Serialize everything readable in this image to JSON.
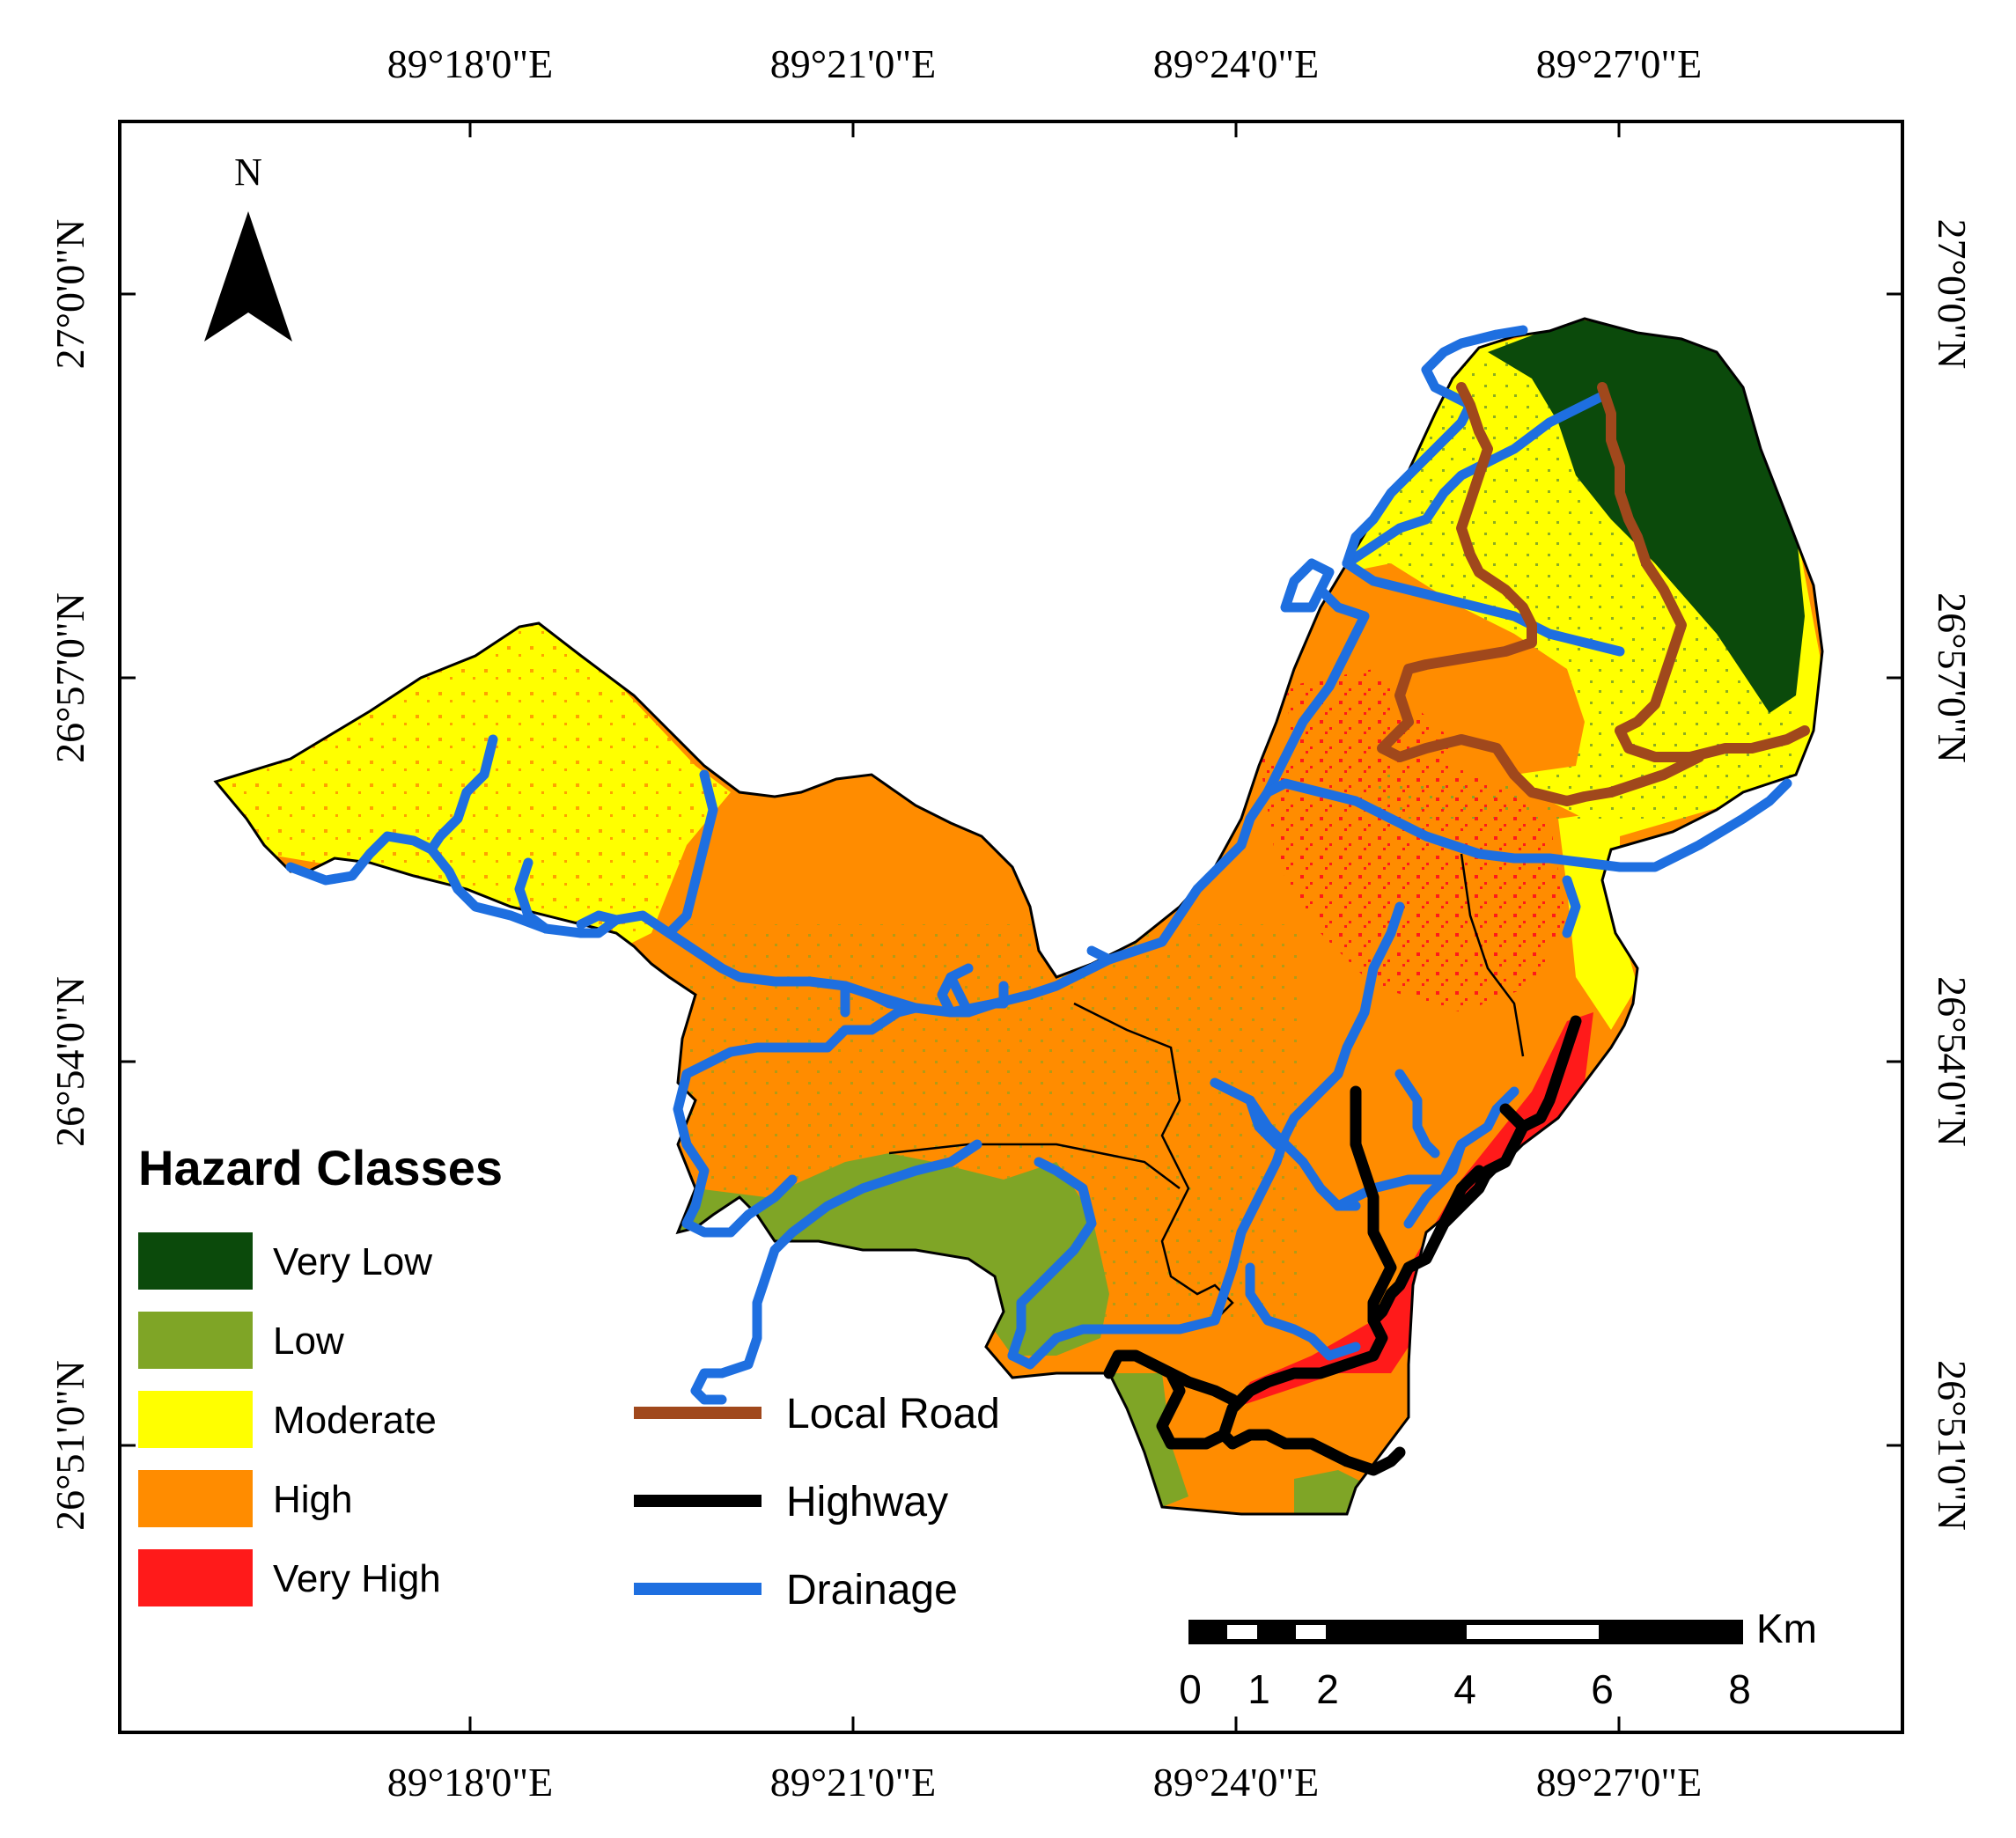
{
  "map": {
    "north_label": "N",
    "top_longitudes": [
      "89°18'0\"E",
      "89°21'0\"E",
      "89°24'0\"E",
      "89°27'0\"E"
    ],
    "bottom_longitudes": [
      "89°18'0\"E",
      "89°21'0\"E",
      "89°24'0\"E",
      "89°27'0\"E"
    ],
    "left_latitudes": [
      "27°0'0\"N",
      "26°57'0\"N",
      "26°54'0\"N",
      "26°51'0\"N"
    ],
    "right_latitudes": [
      "27°0'0\"N",
      "26°57'0\"N",
      "26°54'0\"N",
      "26°51'0\"N"
    ]
  },
  "legend": {
    "title": "Hazard Classes",
    "classes": [
      {
        "label": "Very Low",
        "color": "#0b4a0b"
      },
      {
        "label": "Low",
        "color": "#7fa526"
      },
      {
        "label": "Moderate",
        "color": "#ffff00"
      },
      {
        "label": "High",
        "color": "#ff8c00"
      },
      {
        "label": "Very High",
        "color": "#ff1a1a"
      }
    ],
    "lines": [
      {
        "label": "Local Road",
        "color": "#a0481c"
      },
      {
        "label": "Highway",
        "color": "#000000"
      },
      {
        "label": "Drainage",
        "color": "#1e6fe0"
      }
    ]
  },
  "scale_bar": {
    "unit": "Km",
    "ticks": [
      "0",
      "1",
      "2",
      "4",
      "6",
      "8"
    ]
  }
}
